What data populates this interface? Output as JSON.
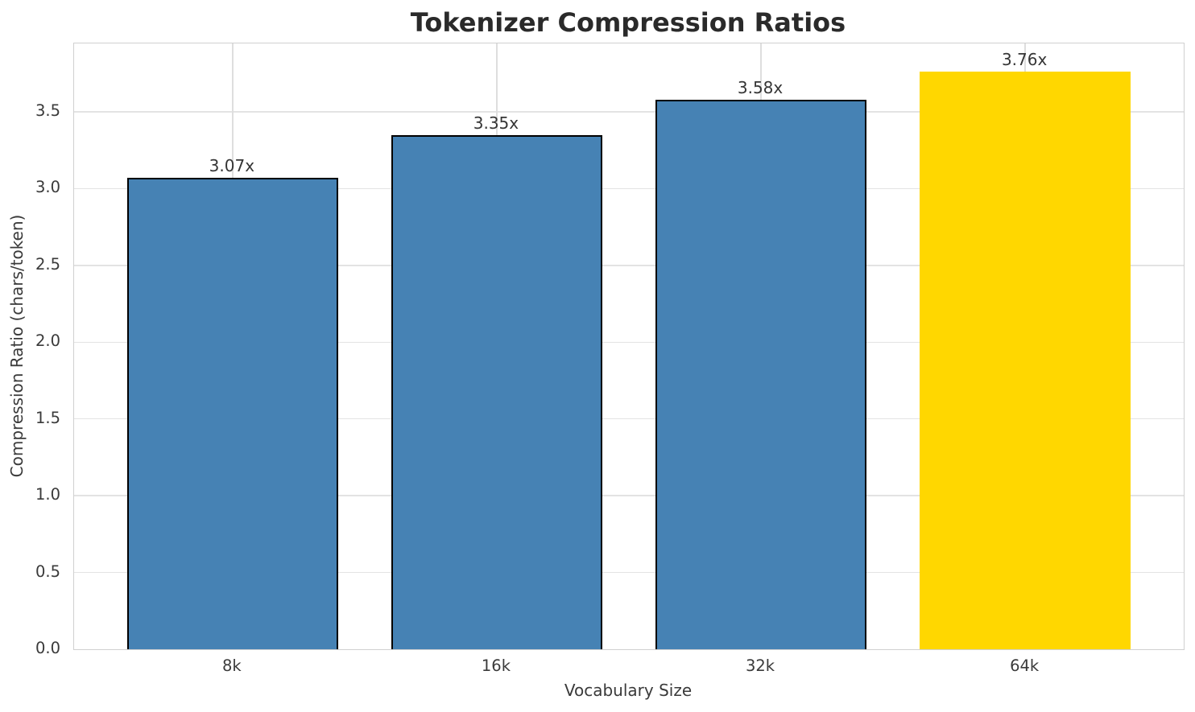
{
  "chart_data": {
    "type": "bar",
    "title": "Tokenizer Compression Ratios",
    "xlabel": "Vocabulary Size",
    "ylabel": "Compression Ratio (chars/token)",
    "categories": [
      "8k",
      "16k",
      "32k",
      "64k"
    ],
    "values": [
      3.07,
      3.35,
      3.58,
      3.76
    ],
    "bar_labels": [
      "3.07x",
      "3.35x",
      "3.58x",
      "3.76x"
    ],
    "bar_colors": [
      "#4682B4",
      "#4682B4",
      "#4682B4",
      "#FFD700"
    ],
    "bar_edge_colors": [
      "#000000",
      "#000000",
      "#000000",
      "none"
    ],
    "bar_edge_width": 2,
    "bar_width": 0.8,
    "y_ticks": [
      0.0,
      0.5,
      1.0,
      1.5,
      2.0,
      2.5,
      3.0,
      3.5
    ],
    "y_tick_labels": [
      "0.0",
      "0.5",
      "1.0",
      "1.5",
      "2.0",
      "2.5",
      "3.0",
      "3.5"
    ],
    "ylim": [
      0,
      3.945
    ],
    "xlim": [
      -0.6,
      3.6
    ],
    "grid": true,
    "legend_position": "none",
    "highlight_category": "64k",
    "colors": {
      "bar_default": "#4682B4",
      "bar_highlight": "#FFD700",
      "grid": "#e3e3e3",
      "spine": "#d0d0d0",
      "text": "#3a3a3a",
      "title_text": "#2a2a2a"
    }
  }
}
